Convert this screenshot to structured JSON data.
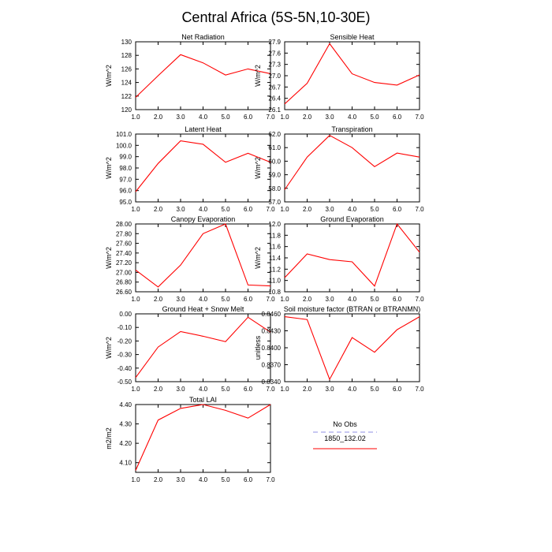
{
  "title": "Central Africa (5S-5N,10-30E)",
  "chart_data": [
    {
      "type": "line",
      "title": "Net Radiation",
      "ylabel": "W/m^2",
      "x": [
        1,
        2,
        3,
        4,
        5,
        6,
        7
      ],
      "xticks": [
        "1.0",
        "2.0",
        "3.0",
        "4.0",
        "5.0",
        "6.0",
        "7.0"
      ],
      "ylim": [
        120,
        130
      ],
      "yticks": [
        "120",
        "122",
        "124",
        "126",
        "128",
        "130"
      ],
      "series": [
        {
          "name": "1850_132.02",
          "values": [
            121.8,
            125.0,
            128.1,
            126.9,
            125.1,
            126.0,
            125.3
          ]
        }
      ]
    },
    {
      "type": "line",
      "title": "Sensible Heat",
      "ylabel": "W/m^2",
      "x": [
        1,
        2,
        3,
        4,
        5,
        6,
        7
      ],
      "xticks": [
        "1.0",
        "2.0",
        "3.0",
        "4.0",
        "5.0",
        "6.0",
        "7.0"
      ],
      "ylim": [
        26.1,
        27.9
      ],
      "yticks": [
        "26.1",
        "26.4",
        "26.7",
        "27.0",
        "27.3",
        "27.6",
        "27.9"
      ],
      "series": [
        {
          "name": "1850_132.02",
          "values": [
            26.25,
            26.8,
            27.85,
            27.05,
            26.82,
            26.75,
            27.02
          ]
        }
      ]
    },
    {
      "type": "line",
      "title": "Latent Heat",
      "ylabel": "W/m^2",
      "x": [
        1,
        2,
        3,
        4,
        5,
        6,
        7
      ],
      "xticks": [
        "1.0",
        "2.0",
        "3.0",
        "4.0",
        "5.0",
        "6.0",
        "7.0"
      ],
      "ylim": [
        95.0,
        101.0
      ],
      "yticks": [
        "95.0",
        "96.0",
        "97.0",
        "98.0",
        "99.0",
        "100.0",
        "101.0"
      ],
      "series": [
        {
          "name": "1850_132.02",
          "values": [
            95.9,
            98.4,
            100.4,
            100.1,
            98.5,
            99.3,
            98.5
          ]
        }
      ]
    },
    {
      "type": "line",
      "title": "Transpiration",
      "ylabel": "W/m^2",
      "x": [
        1,
        2,
        3,
        4,
        5,
        6,
        7
      ],
      "xticks": [
        "1.0",
        "2.0",
        "3.0",
        "4.0",
        "5.0",
        "6.0",
        "7.0"
      ],
      "ylim": [
        57.0,
        62.0
      ],
      "yticks": [
        "57.0",
        "58.0",
        "59.0",
        "60.0",
        "61.0",
        "62.0"
      ],
      "series": [
        {
          "name": "1850_132.02",
          "values": [
            57.9,
            60.3,
            61.9,
            61.0,
            59.6,
            60.6,
            60.3
          ]
        }
      ]
    },
    {
      "type": "line",
      "title": "Canopy Evaporation",
      "ylabel": "W/m^2",
      "x": [
        1,
        2,
        3,
        4,
        5,
        6,
        7
      ],
      "xticks": [
        "1.0",
        "2.0",
        "3.0",
        "4.0",
        "5.0",
        "6.0",
        "7.0"
      ],
      "ylim": [
        26.6,
        28.0
      ],
      "yticks": [
        "26.60",
        "26.80",
        "27.00",
        "27.20",
        "27.40",
        "27.60",
        "27.80",
        "28.00"
      ],
      "series": [
        {
          "name": "1850_132.02",
          "values": [
            27.05,
            26.7,
            27.15,
            27.8,
            28.0,
            26.74,
            26.72
          ]
        }
      ]
    },
    {
      "type": "line",
      "title": "Ground Evaporation",
      "ylabel": "W/m^2",
      "x": [
        1,
        2,
        3,
        4,
        5,
        6,
        7
      ],
      "xticks": [
        "1.0",
        "2.0",
        "3.0",
        "4.0",
        "5.0",
        "6.0",
        "7.0"
      ],
      "ylim": [
        10.8,
        12.0
      ],
      "yticks": [
        "10.8",
        "11.0",
        "11.2",
        "11.4",
        "11.6",
        "11.8",
        "12.0"
      ],
      "series": [
        {
          "name": "1850_132.02",
          "values": [
            11.05,
            11.47,
            11.37,
            11.33,
            10.9,
            12.0,
            11.5
          ]
        }
      ]
    },
    {
      "type": "line",
      "title": "Ground Heat + Snow Melt",
      "ylabel": "W/m^2",
      "x": [
        1,
        2,
        3,
        4,
        5,
        6,
        7
      ],
      "xticks": [
        "1.0",
        "2.0",
        "3.0",
        "4.0",
        "5.0",
        "6.0",
        "7.0"
      ],
      "ylim": [
        -0.5,
        0.0
      ],
      "yticks": [
        "-0.50",
        "-0.40",
        "-0.30",
        "-0.20",
        "-0.10",
        "0.00"
      ],
      "series": [
        {
          "name": "1850_132.02",
          "values": [
            -0.47,
            -0.245,
            -0.13,
            -0.165,
            -0.205,
            -0.025,
            -0.135
          ]
        }
      ]
    },
    {
      "type": "line",
      "title": "Soil moisture factor (BTRAN or BTRANMN)",
      "ylabel": "unitless",
      "x": [
        1,
        2,
        3,
        4,
        5,
        6,
        7
      ],
      "xticks": [
        "1.0",
        "2.0",
        "3.0",
        "4.0",
        "5.0",
        "6.0",
        "7.0"
      ],
      "ylim": [
        0.834,
        0.846
      ],
      "yticks": [
        "0.8340",
        "0.8370",
        "0.8400",
        "0.8430",
        "0.8460"
      ],
      "series": [
        {
          "name": "1850_132.02",
          "values": [
            0.8455,
            0.845,
            0.8344,
            0.8418,
            0.8392,
            0.8432,
            0.8455
          ]
        }
      ]
    },
    {
      "type": "line",
      "title": "Total LAI",
      "ylabel": "m2/m2",
      "x": [
        1,
        2,
        3,
        4,
        5,
        6,
        7
      ],
      "xticks": [
        "1.0",
        "2.0",
        "3.0",
        "4.0",
        "5.0",
        "6.0",
        "7.0"
      ],
      "ylim": [
        4.05,
        4.4
      ],
      "yticks": [
        "4.10",
        "4.20",
        "4.30",
        "4.40"
      ],
      "series": [
        {
          "name": "1850_132.02",
          "values": [
            4.06,
            4.32,
            4.38,
            4.4,
            4.37,
            4.33,
            4.4
          ]
        }
      ]
    }
  ],
  "legend": {
    "items": [
      {
        "label": "No Obs",
        "color": "#8f8fe6",
        "dash": "dashed"
      },
      {
        "label": "1850_132.02",
        "color": "#ff0000",
        "dash": "solid"
      }
    ]
  },
  "colors": {
    "series_line": "#ff0000",
    "axis": "#000000"
  }
}
